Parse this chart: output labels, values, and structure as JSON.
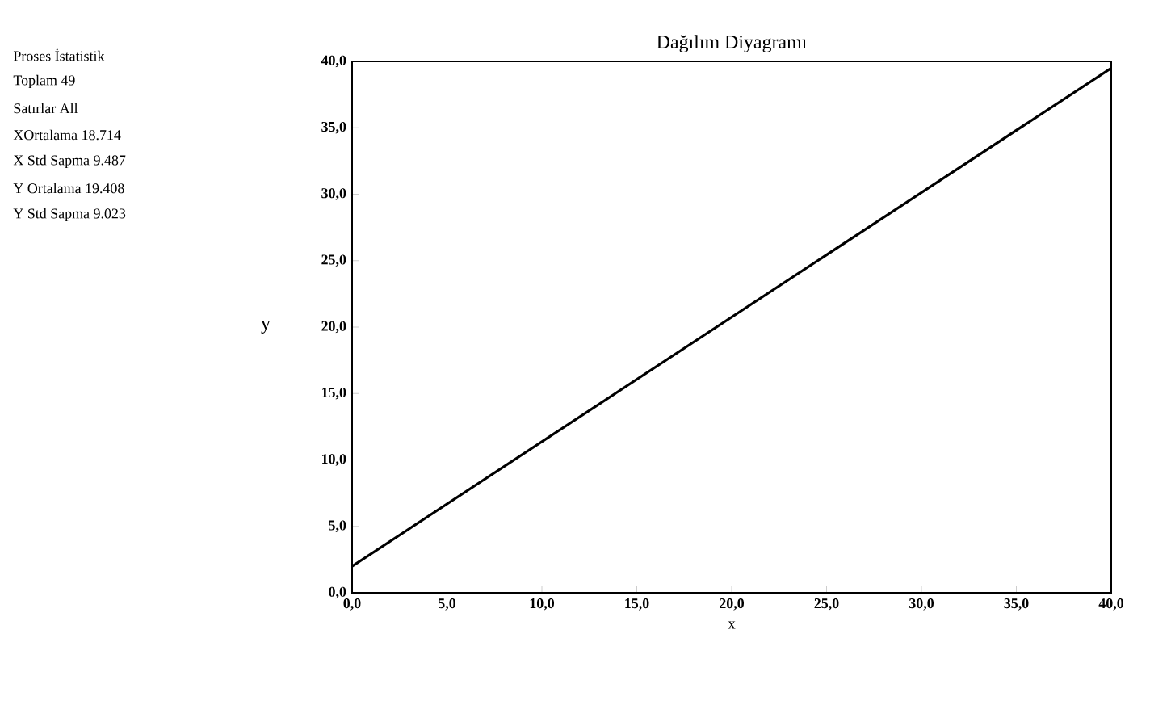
{
  "chart_data": {
    "type": "line",
    "title": "Dağılım Diyagramı",
    "xlabel": "x",
    "ylabel": "y",
    "x": [
      0,
      40
    ],
    "series": [
      {
        "color": "#000000",
        "values": [
          2,
          39.5
        ]
      }
    ],
    "xlim": [
      0,
      40
    ],
    "ylim": [
      0,
      40
    ],
    "xticks": [
      {
        "value": 0,
        "label": "0,0"
      },
      {
        "value": 5,
        "label": "5,0"
      },
      {
        "value": 10,
        "label": "10,0"
      },
      {
        "value": 15,
        "label": "15,0"
      },
      {
        "value": 20,
        "label": "20,0"
      },
      {
        "value": 25,
        "label": "25,0"
      },
      {
        "value": 30,
        "label": "30,0"
      },
      {
        "value": 35,
        "label": "35,0"
      },
      {
        "value": 40,
        "label": "40,0"
      }
    ],
    "yticks": [
      {
        "value": 0,
        "label": "0,0"
      },
      {
        "value": 5,
        "label": "5,0"
      },
      {
        "value": 10,
        "label": "10,0"
      },
      {
        "value": 15,
        "label": "15,0"
      },
      {
        "value": 20,
        "label": "20,0"
      },
      {
        "value": 25,
        "label": "25,0"
      },
      {
        "value": 30,
        "label": "30,0"
      },
      {
        "value": 35,
        "label": "35,0"
      },
      {
        "value": 40,
        "label": "40,0"
      }
    ],
    "marker": "none",
    "line_style": "solid",
    "annotations": [
      "Proses İstatistik",
      "Toplam 49",
      "Satırlar All",
      "XOrtalama 18.714",
      "X Std Sapma 9.487",
      "Y Ortalama 19.408",
      "Y Std Sapma 9.023"
    ]
  }
}
